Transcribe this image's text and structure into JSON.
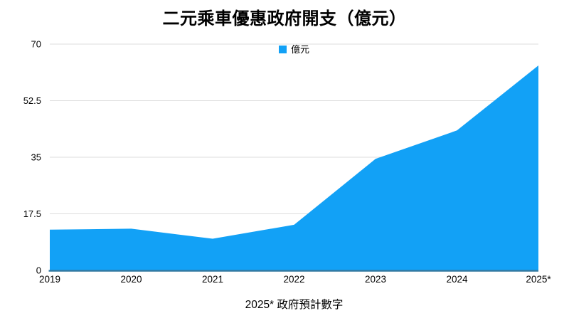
{
  "title": "二元乘車優惠政府開支（億元）",
  "legend": {
    "label": "億元"
  },
  "footnote": "2025* 政府預計數字",
  "chart_data": {
    "type": "area",
    "categories": [
      "2019",
      "2020",
      "2021",
      "2022",
      "2023",
      "2024",
      "2025*"
    ],
    "series": [
      {
        "name": "億元",
        "values": [
          12.6,
          12.9,
          9.8,
          14.1,
          34.5,
          43.3,
          63.4
        ]
      }
    ],
    "title": "二元乘車優惠政府開支（億元）",
    "xlabel": "",
    "ylabel": "",
    "ylim": [
      0,
      70
    ],
    "yticks": [
      0,
      17.5,
      35,
      52.5,
      70
    ],
    "grid": true,
    "legend_position": "top-center",
    "annotation": "2025* 政府預計數字",
    "colors": {
      "area": "#12A1F6",
      "baseline": "#33789F",
      "gridline": "#DDDDDD",
      "text": "#000000"
    }
  }
}
